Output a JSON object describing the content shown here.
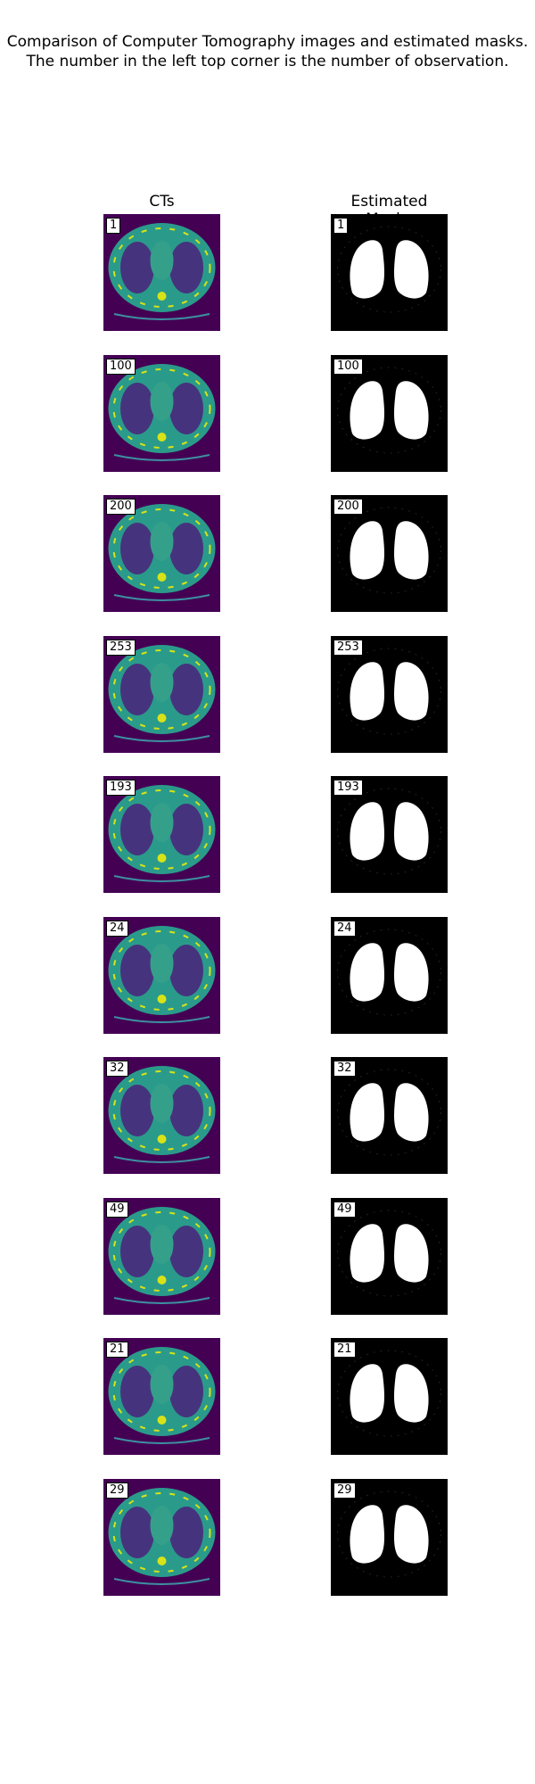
{
  "figure": {
    "title_line1": "Comparison of Computer Tomography images and estimated masks.",
    "title_line2": "The number in the left top corner is the number of observation.",
    "ct_column_label": "CTs",
    "mask_column_label": "Estimated Masks",
    "colors": {
      "ct_background": "#440154",
      "ct_body": "#2a9b8a",
      "ct_dark": "#46337e",
      "ct_bone": "#d7e219",
      "mask_background": "#000000",
      "mask_foreground": "#ffffff"
    },
    "rows": [
      {
        "observation": "1"
      },
      {
        "observation": "100"
      },
      {
        "observation": "200"
      },
      {
        "observation": "253"
      },
      {
        "observation": "193"
      },
      {
        "observation": "24"
      },
      {
        "observation": "32"
      },
      {
        "observation": "49"
      },
      {
        "observation": "21"
      },
      {
        "observation": "29"
      }
    ]
  }
}
